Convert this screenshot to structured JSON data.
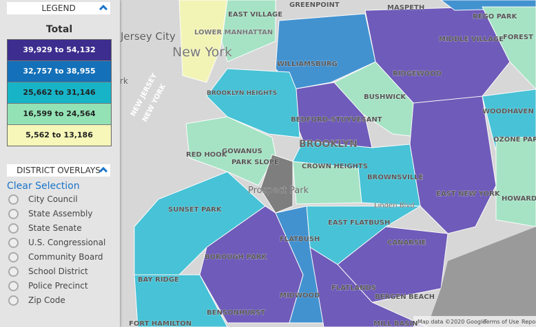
{
  "legend": {
    "title": "LEGEND",
    "subtitle": "Total",
    "entries": [
      {
        "label": "39,929 to 54,132",
        "color": "#3d2d8e"
      },
      {
        "label": "32,757 to 38,955",
        "color": "#1470b8"
      },
      {
        "label": "25,662 to 31,146",
        "color": "#17b4c8"
      },
      {
        "label": "16,599 to 24,564",
        "color": "#93e2b5"
      },
      {
        "label": "5,562 to 13,186",
        "color": "#f6f7b8"
      }
    ]
  },
  "overlays": {
    "title": "DISTRICT OVERLAYS",
    "clear": "Clear Selection",
    "options": [
      "City Council",
      "State Assembly",
      "State Senate",
      "U.S. Congressional",
      "Community Board",
      "School District",
      "Police Precinct",
      "Zip Code"
    ]
  },
  "map": {
    "labels": [
      "Jersey City",
      "New York",
      "Park",
      "GREENPOINT",
      "MASPETH",
      "REGO PARK",
      "FOREST HILLS",
      "MIDDLE VILLAGE",
      "EAST VILLAGE",
      "LOWER MANHATTAN",
      "WILLIAMSBURG",
      "RIDGEWOOD",
      "BROOKLYN HEIGHTS",
      "BUSHWICK",
      "BEDFORD-STUYVESANT",
      "WOODHAVEN",
      "BROOKLYN",
      "OZONE PARK",
      "RED HOOK",
      "GOWANUS",
      "PARK SLOPE",
      "CROWN HEIGHTS",
      "BROWNSVILLE",
      "NEW JERSEY",
      "NEW YORK",
      "Prospect Park",
      "Linden Blvd",
      "EAST NEW YORK",
      "HOWARD BEACH",
      "SUNSET PARK",
      "EAST FLATBUSH",
      "CANARSIE",
      "FLATBUSH",
      "BOROUGH PARK",
      "BAY RIDGE",
      "MIDWOOD",
      "FLATLANDS",
      "BERGEN BEACH",
      "BENSONHURST",
      "MILL BASIN",
      "FORT HAMILTON"
    ],
    "footer": [
      "Map data ©2020 Google",
      "Terms of Use",
      "Report a map error"
    ]
  }
}
